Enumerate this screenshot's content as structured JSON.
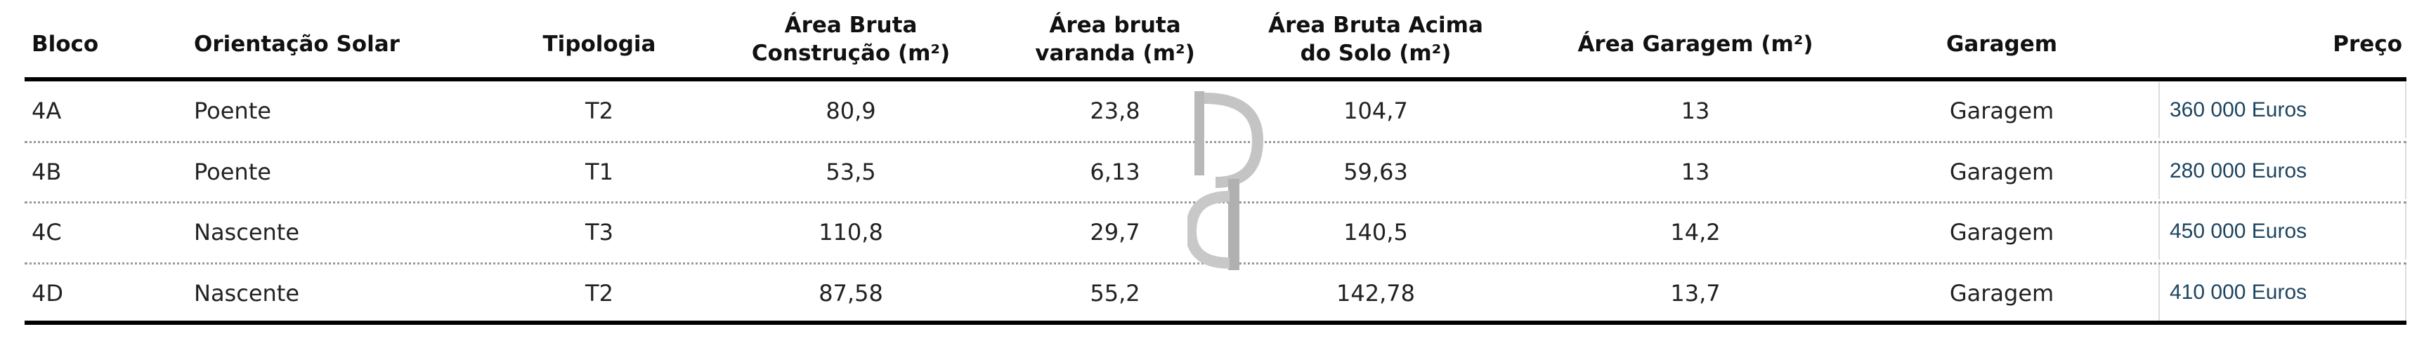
{
  "table": {
    "headers": {
      "bloco": "Bloco",
      "orientacao": "Orientação Solar",
      "tipologia": "Tipologia",
      "area_construcao_1": "Área Bruta",
      "area_construcao_2": "Construção (m²)",
      "area_varanda_1": "Área bruta",
      "area_varanda_2": "varanda (m²)",
      "area_solo_1": "Área Bruta Acima",
      "area_solo_2": "do Solo (m²)",
      "area_garagem": "Área Garagem (m²)",
      "garagem": "Garagem",
      "preco": "Preço"
    },
    "rows": [
      {
        "bloco": "4A",
        "orientacao": "Poente",
        "tipologia": "T2",
        "area_construcao": "80,9",
        "area_varanda": "23,8",
        "area_solo": "104,7",
        "area_garagem": "13",
        "garagem": "Garagem",
        "preco": "360 000 Euros"
      },
      {
        "bloco": "4B",
        "orientacao": "Poente",
        "tipologia": "T1",
        "area_construcao": "53,5",
        "area_varanda": "6,13",
        "area_solo": "59,63",
        "area_garagem": "13",
        "garagem": "Garagem",
        "preco": "280 000 Euros"
      },
      {
        "bloco": "4C",
        "orientacao": "Nascente",
        "tipologia": "T3",
        "area_construcao": "110,8",
        "area_varanda": "29,7",
        "area_solo": "140,5",
        "area_garagem": "14,2",
        "garagem": "Garagem",
        "preco": "450 000 Euros"
      },
      {
        "bloco": "4D",
        "orientacao": "Nascente",
        "tipologia": "T2",
        "area_construcao": "87,58",
        "area_varanda": "55,2",
        "area_solo": "142,78",
        "area_garagem": "13,7",
        "garagem": "Garagem",
        "preco": "410 000 Euros"
      }
    ]
  },
  "colors": {
    "price_text": "#1d4560",
    "rule": "#000000",
    "watermark": "#b5b5b5"
  },
  "watermark_icon": "dp-logo-icon"
}
